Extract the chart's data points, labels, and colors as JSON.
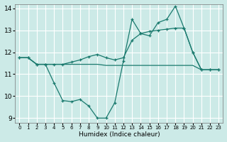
{
  "xlabel": "Humidex (Indice chaleur)",
  "bg_color": "#cceae7",
  "grid_color": "#ffffff",
  "line_color": "#1a7a6e",
  "xlim": [
    -0.5,
    23.5
  ],
  "ylim": [
    8.8,
    14.2
  ],
  "xticks": [
    0,
    1,
    2,
    3,
    4,
    5,
    6,
    7,
    8,
    9,
    10,
    11,
    12,
    13,
    14,
    15,
    16,
    17,
    18,
    19,
    20,
    21,
    22,
    23
  ],
  "yticks": [
    9,
    10,
    11,
    12,
    13,
    14
  ],
  "line1_x": [
    0,
    1,
    2,
    3,
    4,
    5,
    6,
    7,
    8,
    9,
    10,
    11,
    12,
    13,
    14,
    15,
    16,
    17,
    18,
    19,
    20,
    21,
    22,
    23
  ],
  "line1_y": [
    11.75,
    11.75,
    11.45,
    11.45,
    10.6,
    9.8,
    9.75,
    9.85,
    9.55,
    9.0,
    9.0,
    9.7,
    11.6,
    13.5,
    12.85,
    12.75,
    13.35,
    13.5,
    14.1,
    13.1,
    12.0,
    11.2,
    11.2,
    11.2
  ],
  "line2_x": [
    0,
    1,
    2,
    3,
    4,
    5,
    6,
    7,
    8,
    9,
    10,
    11,
    12,
    13,
    14,
    15,
    16,
    17,
    18,
    19,
    20,
    21,
    22,
    23
  ],
  "line2_y": [
    11.75,
    11.75,
    11.45,
    11.45,
    11.45,
    11.45,
    11.45,
    11.45,
    11.45,
    11.45,
    11.4,
    11.4,
    11.4,
    11.4,
    11.4,
    11.4,
    11.4,
    11.4,
    11.4,
    11.4,
    11.4,
    11.2,
    11.2,
    11.2
  ],
  "line3_x": [
    0,
    1,
    2,
    3,
    4,
    5,
    6,
    7,
    8,
    9,
    10,
    11,
    12,
    13,
    14,
    15,
    16,
    17,
    18,
    19,
    20,
    21,
    22,
    23
  ],
  "line3_y": [
    11.75,
    11.75,
    11.45,
    11.45,
    11.45,
    11.45,
    11.55,
    11.65,
    11.8,
    11.9,
    11.75,
    11.65,
    11.75,
    12.55,
    12.85,
    12.95,
    13.0,
    13.05,
    13.1,
    13.1,
    12.0,
    11.2,
    11.2,
    11.2
  ]
}
